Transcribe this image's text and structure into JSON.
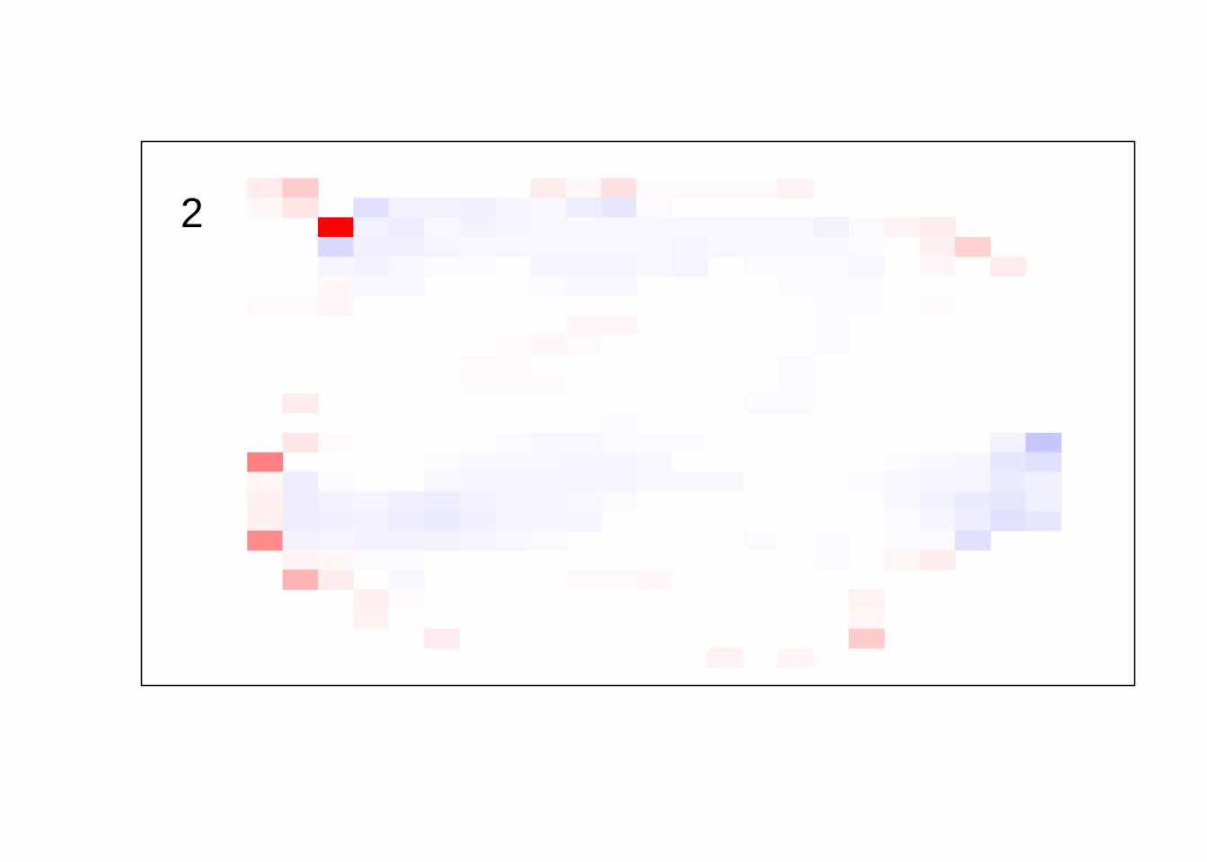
{
  "chart_data": {
    "type": "heatmap",
    "panel_label": "2",
    "colors": {
      "negative": "#0000ff",
      "zero": "#ffffff",
      "positive": "#ff0000",
      "background": "#fefefe"
    },
    "value_range": [
      -1,
      1
    ],
    "cells": [
      [
        3,
        0,
        0.08
      ],
      [
        4,
        0,
        0.2
      ],
      [
        11,
        0,
        0.08
      ],
      [
        12,
        0,
        0.03
      ],
      [
        13,
        0,
        0.12
      ],
      [
        14,
        0,
        0.02
      ],
      [
        15,
        0,
        0.02
      ],
      [
        16,
        0,
        0.02
      ],
      [
        17,
        0,
        0.02
      ],
      [
        18,
        0,
        0.05
      ],
      [
        3,
        1,
        0.03
      ],
      [
        4,
        1,
        0.1
      ],
      [
        6,
        1,
        -0.12
      ],
      [
        7,
        1,
        -0.05
      ],
      [
        8,
        1,
        -0.05
      ],
      [
        9,
        1,
        -0.06
      ],
      [
        10,
        1,
        -0.04
      ],
      [
        11,
        1,
        -0.03
      ],
      [
        12,
        1,
        -0.07
      ],
      [
        13,
        1,
        -0.1
      ],
      [
        14,
        1,
        -0.02
      ],
      [
        5,
        2,
        1.0
      ],
      [
        6,
        2,
        -0.05
      ],
      [
        7,
        2,
        -0.07
      ],
      [
        8,
        2,
        -0.03
      ],
      [
        9,
        2,
        -0.05
      ],
      [
        10,
        2,
        -0.04
      ],
      [
        11,
        2,
        -0.03
      ],
      [
        12,
        2,
        -0.03
      ],
      [
        13,
        2,
        -0.03
      ],
      [
        14,
        2,
        -0.03
      ],
      [
        15,
        2,
        -0.03
      ],
      [
        16,
        2,
        -0.03
      ],
      [
        17,
        2,
        -0.03
      ],
      [
        18,
        2,
        -0.03
      ],
      [
        19,
        2,
        -0.05
      ],
      [
        20,
        2,
        -0.02
      ],
      [
        21,
        2,
        0.05
      ],
      [
        22,
        2,
        0.08
      ],
      [
        5,
        3,
        -0.15
      ],
      [
        6,
        3,
        -0.06
      ],
      [
        7,
        3,
        -0.06
      ],
      [
        8,
        3,
        -0.04
      ],
      [
        9,
        3,
        -0.03
      ],
      [
        10,
        3,
        -0.03
      ],
      [
        11,
        3,
        -0.03
      ],
      [
        12,
        3,
        -0.03
      ],
      [
        13,
        3,
        -0.03
      ],
      [
        14,
        3,
        -0.03
      ],
      [
        15,
        3,
        -0.04
      ],
      [
        16,
        3,
        -0.03
      ],
      [
        17,
        3,
        -0.03
      ],
      [
        18,
        3,
        -0.03
      ],
      [
        19,
        3,
        -0.03
      ],
      [
        20,
        3,
        -0.02
      ],
      [
        22,
        3,
        0.06
      ],
      [
        23,
        3,
        0.18
      ],
      [
        5,
        4,
        -0.04
      ],
      [
        6,
        4,
        -0.05
      ],
      [
        7,
        4,
        -0.03
      ],
      [
        8,
        4,
        -0.02
      ],
      [
        9,
        4,
        -0.02
      ],
      [
        11,
        4,
        -0.04
      ],
      [
        12,
        4,
        -0.04
      ],
      [
        13,
        4,
        -0.04
      ],
      [
        14,
        4,
        -0.03
      ],
      [
        15,
        4,
        -0.04
      ],
      [
        17,
        4,
        -0.02
      ],
      [
        18,
        4,
        -0.02
      ],
      [
        19,
        4,
        -0.02
      ],
      [
        20,
        4,
        -0.03
      ],
      [
        22,
        4,
        0.03
      ],
      [
        24,
        4,
        0.08
      ],
      [
        5,
        5,
        0.03
      ],
      [
        6,
        5,
        -0.03
      ],
      [
        7,
        5,
        -0.03
      ],
      [
        11,
        5,
        -0.02
      ],
      [
        12,
        5,
        -0.03
      ],
      [
        13,
        5,
        -0.03
      ],
      [
        18,
        5,
        -0.02
      ],
      [
        19,
        5,
        -0.02
      ],
      [
        20,
        5,
        -0.02
      ],
      [
        3,
        6,
        0.02
      ],
      [
        4,
        6,
        0.02
      ],
      [
        5,
        6,
        0.03
      ],
      [
        19,
        6,
        -0.02
      ],
      [
        20,
        6,
        -0.02
      ],
      [
        22,
        6,
        0.02
      ],
      [
        12,
        7,
        0.03
      ],
      [
        13,
        7,
        0.03
      ],
      [
        19,
        7,
        -0.02
      ],
      [
        10,
        8,
        0.02
      ],
      [
        11,
        8,
        0.03
      ],
      [
        12,
        8,
        0.02
      ],
      [
        19,
        8,
        -0.02
      ],
      [
        9,
        9,
        0.02
      ],
      [
        10,
        9,
        0.02
      ],
      [
        18,
        9,
        -0.02
      ],
      [
        9,
        10,
        0.02
      ],
      [
        10,
        10,
        0.02
      ],
      [
        11,
        10,
        0.02
      ],
      [
        18,
        10,
        -0.02
      ],
      [
        4,
        11,
        0.08
      ],
      [
        17,
        11,
        -0.02
      ],
      [
        18,
        11,
        -0.02
      ],
      [
        13,
        12,
        -0.02
      ],
      [
        4,
        13,
        0.1
      ],
      [
        5,
        13,
        0.02
      ],
      [
        10,
        13,
        -0.02
      ],
      [
        11,
        13,
        -0.03
      ],
      [
        12,
        13,
        -0.03
      ],
      [
        13,
        13,
        -0.02
      ],
      [
        14,
        13,
        -0.02
      ],
      [
        15,
        13,
        -0.02
      ],
      [
        24,
        13,
        -0.05
      ],
      [
        25,
        13,
        -0.22
      ],
      [
        3,
        14,
        0.5
      ],
      [
        8,
        14,
        -0.02
      ],
      [
        9,
        14,
        -0.03
      ],
      [
        10,
        14,
        -0.03
      ],
      [
        11,
        14,
        -0.03
      ],
      [
        12,
        14,
        -0.04
      ],
      [
        13,
        14,
        -0.04
      ],
      [
        14,
        14,
        -0.03
      ],
      [
        21,
        14,
        -0.02
      ],
      [
        22,
        14,
        -0.03
      ],
      [
        23,
        14,
        -0.04
      ],
      [
        24,
        14,
        -0.1
      ],
      [
        25,
        14,
        -0.12
      ],
      [
        3,
        15,
        0.04
      ],
      [
        4,
        15,
        -0.07
      ],
      [
        5,
        15,
        -0.02
      ],
      [
        8,
        15,
        -0.03
      ],
      [
        9,
        15,
        -0.04
      ],
      [
        10,
        15,
        -0.04
      ],
      [
        11,
        15,
        -0.04
      ],
      [
        12,
        15,
        -0.04
      ],
      [
        13,
        15,
        -0.04
      ],
      [
        14,
        15,
        -0.03
      ],
      [
        15,
        15,
        -0.03
      ],
      [
        16,
        15,
        -0.03
      ],
      [
        20,
        15,
        -0.02
      ],
      [
        21,
        15,
        -0.03
      ],
      [
        22,
        15,
        -0.04
      ],
      [
        23,
        15,
        -0.04
      ],
      [
        24,
        15,
        -0.08
      ],
      [
        25,
        15,
        -0.06
      ],
      [
        3,
        16,
        0.06
      ],
      [
        4,
        16,
        -0.07
      ],
      [
        5,
        16,
        -0.05
      ],
      [
        6,
        16,
        -0.04
      ],
      [
        7,
        16,
        -0.06
      ],
      [
        8,
        16,
        -0.07
      ],
      [
        9,
        16,
        -0.05
      ],
      [
        10,
        16,
        -0.04
      ],
      [
        11,
        16,
        -0.04
      ],
      [
        12,
        16,
        -0.03
      ],
      [
        13,
        16,
        -0.02
      ],
      [
        21,
        16,
        -0.03
      ],
      [
        22,
        16,
        -0.05
      ],
      [
        23,
        16,
        -0.08
      ],
      [
        24,
        16,
        -0.1
      ],
      [
        25,
        16,
        -0.06
      ],
      [
        3,
        17,
        0.06
      ],
      [
        4,
        17,
        -0.07
      ],
      [
        5,
        17,
        -0.06
      ],
      [
        6,
        17,
        -0.05
      ],
      [
        7,
        17,
        -0.07
      ],
      [
        8,
        17,
        -0.08
      ],
      [
        9,
        17,
        -0.06
      ],
      [
        10,
        17,
        -0.04
      ],
      [
        11,
        17,
        -0.04
      ],
      [
        12,
        17,
        -0.04
      ],
      [
        21,
        17,
        -0.02
      ],
      [
        22,
        17,
        -0.04
      ],
      [
        23,
        17,
        -0.07
      ],
      [
        24,
        17,
        -0.12
      ],
      [
        25,
        17,
        -0.1
      ],
      [
        3,
        18,
        0.45
      ],
      [
        4,
        18,
        -0.05
      ],
      [
        5,
        18,
        -0.04
      ],
      [
        6,
        18,
        -0.05
      ],
      [
        7,
        18,
        -0.05
      ],
      [
        8,
        18,
        -0.05
      ],
      [
        9,
        18,
        -0.04
      ],
      [
        10,
        18,
        -0.03
      ],
      [
        11,
        18,
        -0.02
      ],
      [
        17,
        18,
        -0.02
      ],
      [
        19,
        18,
        -0.02
      ],
      [
        21,
        18,
        -0.02
      ],
      [
        22,
        18,
        -0.02
      ],
      [
        23,
        18,
        -0.12
      ],
      [
        4,
        19,
        0.05
      ],
      [
        5,
        19,
        0.03
      ],
      [
        6,
        19,
        -0.02
      ],
      [
        7,
        19,
        -0.02
      ],
      [
        19,
        19,
        -0.02
      ],
      [
        21,
        19,
        0.04
      ],
      [
        22,
        19,
        0.07
      ],
      [
        4,
        20,
        0.3
      ],
      [
        5,
        20,
        0.07
      ],
      [
        7,
        20,
        -0.03
      ],
      [
        12,
        20,
        0.02
      ],
      [
        13,
        20,
        0.02
      ],
      [
        14,
        20,
        0.03
      ],
      [
        6,
        21,
        0.06
      ],
      [
        7,
        21,
        0.02
      ],
      [
        20,
        21,
        0.05
      ],
      [
        6,
        22,
        0.05
      ],
      [
        20,
        22,
        0.03
      ],
      [
        8,
        23,
        0.08
      ],
      [
        20,
        23,
        0.2
      ],
      [
        16,
        24,
        0.05
      ],
      [
        18,
        24,
        0.04
      ]
    ]
  }
}
